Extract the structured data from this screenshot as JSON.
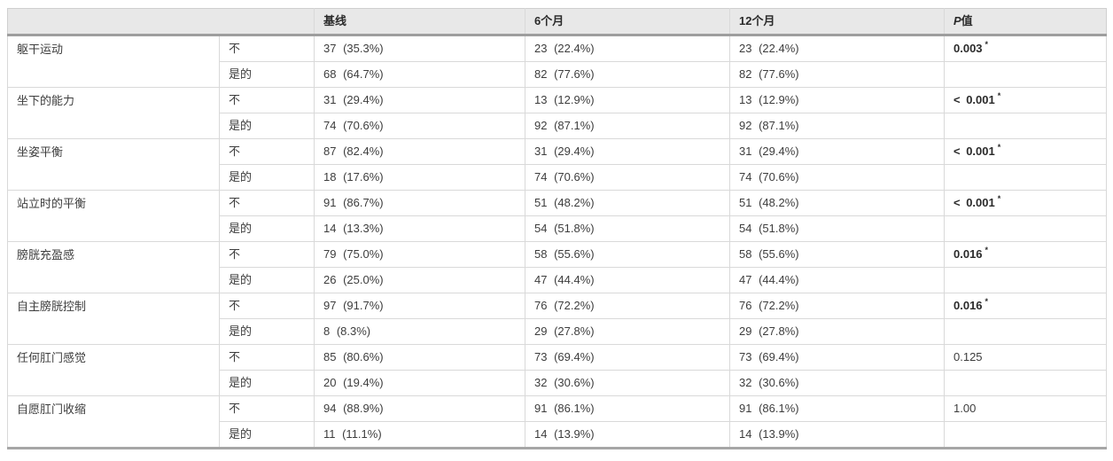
{
  "style": {
    "header_bg": "#e8e8e8",
    "thick_border": "#9e9e9e",
    "thin_border": "#d9d9d9",
    "text_color": "#3d3d3d",
    "page_bg": "#ffffff"
  },
  "table": {
    "header": {
      "blank": "",
      "columns": [
        "基线",
        "6个月",
        "12个月"
      ],
      "p_column": {
        "italic_part": "P",
        "normal_part": "值"
      }
    },
    "answer_labels": {
      "no": "不",
      "yes": "是的"
    },
    "rows": [
      {
        "label": "躯干运动",
        "no": {
          "baseline": "37 (35.3%)",
          "m6": "23 (22.4%)",
          "m12": "23 (22.4%)"
        },
        "yes": {
          "baseline": "68 (64.7%)",
          "m6": "82 (77.6%)",
          "m12": "82 (77.6%)"
        },
        "p": {
          "text": "0.003",
          "star": "*",
          "bold": true
        }
      },
      {
        "label": "坐下的能力",
        "no": {
          "baseline": "31 (29.4%)",
          "m6": "13 (12.9%)",
          "m12": "13 (12.9%)"
        },
        "yes": {
          "baseline": "74 (70.6%)",
          "m6": "92 (87.1%)",
          "m12": "92 (87.1%)"
        },
        "p": {
          "text": "< 0.001",
          "star": "*",
          "bold": true
        }
      },
      {
        "label": "坐姿平衡",
        "no": {
          "baseline": "87 (82.4%)",
          "m6": "31 (29.4%)",
          "m12": "31 (29.4%)"
        },
        "yes": {
          "baseline": "18 (17.6%)",
          "m6": "74 (70.6%)",
          "m12": "74 (70.6%)"
        },
        "p": {
          "text": "< 0.001",
          "star": "*",
          "bold": true
        }
      },
      {
        "label": "站立时的平衡",
        "no": {
          "baseline": "91 (86.7%)",
          "m6": "51 (48.2%)",
          "m12": "51 (48.2%)"
        },
        "yes": {
          "baseline": "14 (13.3%)",
          "m6": "54 (51.8%)",
          "m12": "54 (51.8%)"
        },
        "p": {
          "text": "< 0.001",
          "star": "*",
          "bold": true
        }
      },
      {
        "label": "膀胱充盈感",
        "no": {
          "baseline": "79 (75.0%)",
          "m6": "58 (55.6%)",
          "m12": "58 (55.6%)"
        },
        "yes": {
          "baseline": "26 (25.0%)",
          "m6": "47 (44.4%)",
          "m12": "47 (44.4%)"
        },
        "p": {
          "text": "0.016",
          "star": "*",
          "bold": true
        }
      },
      {
        "label": "自主膀胱控制",
        "no": {
          "baseline": "97 (91.7%)",
          "m6": "76 (72.2%)",
          "m12": "76 (72.2%)"
        },
        "yes": {
          "baseline": "8 (8.3%)",
          "m6": "29 (27.8%)",
          "m12": "29 (27.8%)"
        },
        "p": {
          "text": "0.016",
          "star": "*",
          "bold": true
        }
      },
      {
        "label": "任何肛门感觉",
        "no": {
          "baseline": "85 (80.6%)",
          "m6": "73 (69.4%)",
          "m12": "73 (69.4%)"
        },
        "yes": {
          "baseline": "20 (19.4%)",
          "m6": "32 (30.6%)",
          "m12": "32 (30.6%)"
        },
        "p": {
          "text": "0.125",
          "star": "",
          "bold": false
        }
      },
      {
        "label": "自愿肛门收缩",
        "no": {
          "baseline": "94 (88.9%)",
          "m6": "91 (86.1%)",
          "m12": "91 (86.1%)"
        },
        "yes": {
          "baseline": "11 (11.1%)",
          "m6": "14 (13.9%)",
          "m12": "14 (13.9%)"
        },
        "p": {
          "text": "1.00",
          "star": "",
          "bold": false
        }
      }
    ]
  }
}
